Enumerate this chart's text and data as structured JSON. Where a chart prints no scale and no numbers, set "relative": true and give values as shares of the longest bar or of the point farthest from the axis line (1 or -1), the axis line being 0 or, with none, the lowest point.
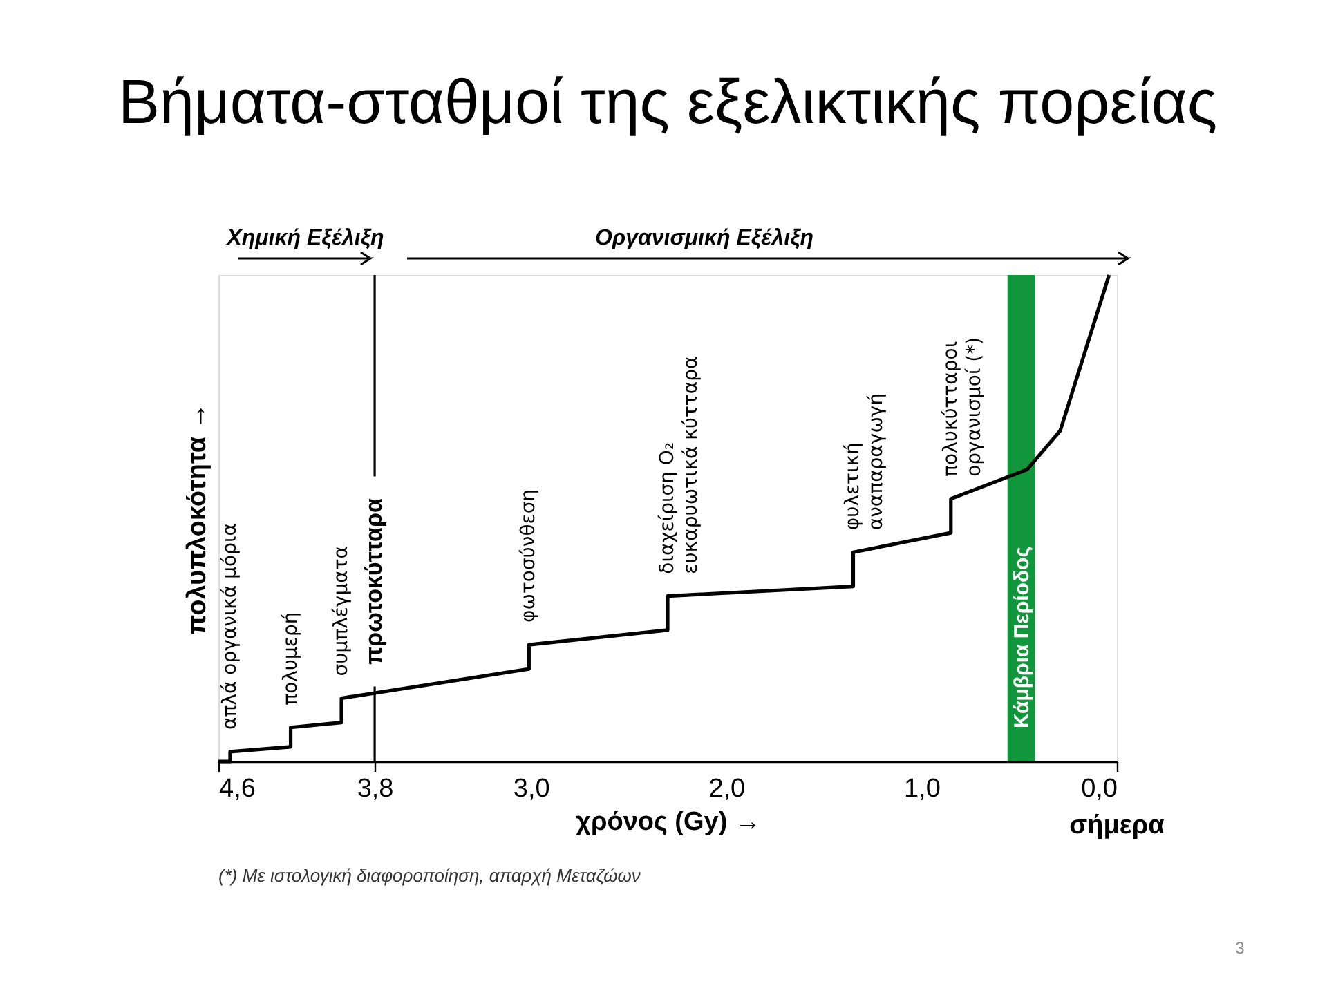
{
  "chart_data": {
    "type": "line",
    "title": "Βήματα-σταθμοί της εξελικτικής πορείας",
    "xlabel": "χρόνος  (Gy)  →",
    "ylabel": "πολυπλοκότητα  →",
    "relative": true,
    "x": [
      4.6,
      4.54,
      4.54,
      4.23,
      4.23,
      3.97,
      3.97,
      3.01,
      3.01,
      2.3,
      2.3,
      1.35,
      1.35,
      0.85,
      0.85,
      0.46,
      0.29,
      0.04
    ],
    "values": [
      0,
      0,
      0.02,
      0.03,
      0.07,
      0.08,
      0.13,
      0.19,
      0.24,
      0.27,
      0.34,
      0.36,
      0.43,
      0.47,
      0.54,
      0.6,
      0.68,
      1.0
    ],
    "color": "#000000",
    "line_style": "solid",
    "grid": false,
    "xlim": [
      4.6,
      0.0
    ],
    "xticks": [
      {
        "value": 4.6,
        "label": "4,6"
      },
      {
        "value": 3.8,
        "label": "3,8"
      },
      {
        "value": 3.0,
        "label": "3,0"
      },
      {
        "value": 2.0,
        "label": "2,0"
      },
      {
        "value": 1.0,
        "label": "1,0"
      },
      {
        "value": 0.0,
        "label": "0,0"
      }
    ],
    "ref_lines": [
      {
        "axis": "x",
        "value": 3.8,
        "label": "πρωτοκύτταρα",
        "color": "#000000"
      }
    ],
    "bands": [
      {
        "axis": "x",
        "from": 0.56,
        "to": 0.42,
        "label": "Κάμβρια Περίοδος",
        "color": "#12963c"
      }
    ],
    "annotations": [
      {
        "text": "απλά οργανικά μόρια",
        "x": 4.54,
        "y": 0.02
      },
      {
        "text": "πολυμερή",
        "x": 4.23,
        "y": 0.07
      },
      {
        "text": "συμπλέγματα",
        "x": 3.97,
        "y": 0.13
      },
      {
        "text": "φωτοσύνθεση",
        "x": 3.01,
        "y": 0.24
      },
      {
        "text": "διαχείριση O₂\nευκαρυωτικά κύτταρα",
        "x": 2.3,
        "y": 0.34
      },
      {
        "text": "φυλετική\nαναπαραγωγή",
        "x": 1.35,
        "y": 0.43
      },
      {
        "text": "πολυκύτταροι\nοργανισμοί (*)",
        "x": 0.85,
        "y": 0.54
      },
      "Χημική Εξέλιξη",
      "Οργανισμική Εξέλιξη",
      "σήμερα",
      "(*) Με ιστολογική διαφοροποίηση, απαρχή Μεταζώων",
      "3"
    ]
  }
}
